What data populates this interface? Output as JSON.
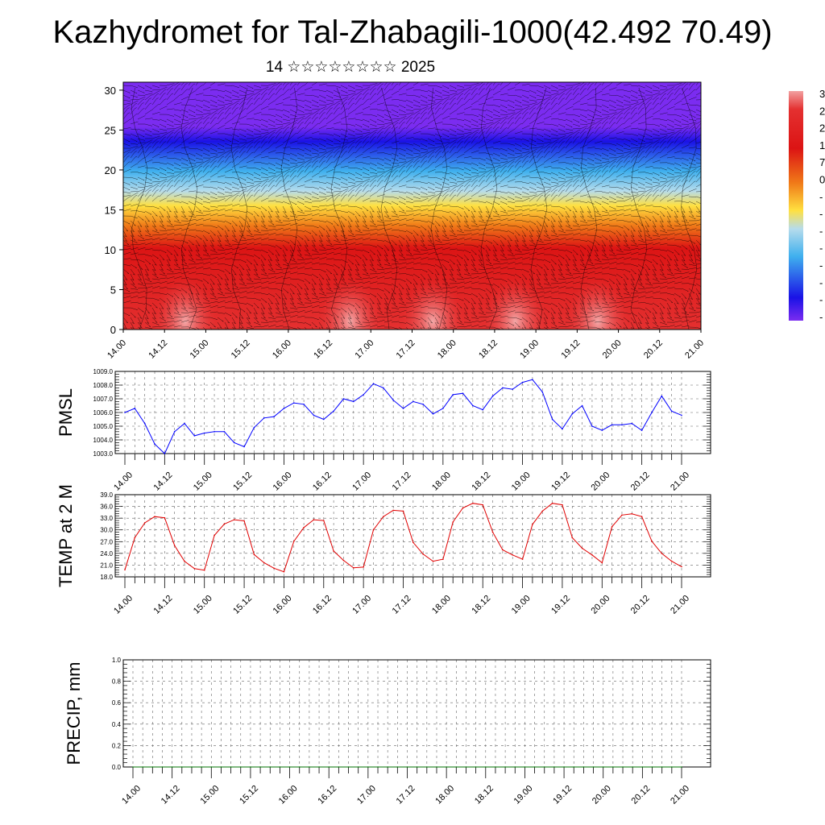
{
  "page": {
    "title": "Kazhydromet for Tal-Zhabagili-1000(42.492 70.49)",
    "subtitle": "14 ☆☆☆☆☆☆☆☆ 2025"
  },
  "colors": {
    "pmsl_line": "#0000ff",
    "temp_line": "#e00000",
    "precip_line": "#007000",
    "violet": "#7b2cf0",
    "blue": "#1a12e6",
    "light_blue": "#b6dcec",
    "yellow": "#ffe040",
    "orange": "#f07a18",
    "red": "#dc1414"
  },
  "chart_data": [
    {
      "type": "heatmap",
      "name": "vertical-profile",
      "x_ticks": [
        "14.00",
        "14.12",
        "15.00",
        "15.12",
        "16.00",
        "16.12",
        "17.00",
        "17.12",
        "18.00",
        "18.12",
        "19.00",
        "19.12",
        "20.00",
        "20.12",
        "21.00"
      ],
      "ylim": [
        0,
        31
      ],
      "y_ticks": [
        0,
        5,
        10,
        15,
        20,
        25,
        30
      ],
      "level_color_bands": [
        {
          "from": 0,
          "to": 12,
          "color": "red"
        },
        {
          "from": 12,
          "to": 14.5,
          "color": "orange"
        },
        {
          "from": 14.5,
          "to": 17,
          "color": "yellow"
        },
        {
          "from": 17,
          "to": 21,
          "color": "light blue"
        },
        {
          "from": 21,
          "to": 25.5,
          "color": "blue"
        },
        {
          "from": 25.5,
          "to": 31,
          "color": "violet"
        }
      ],
      "colorbar_labels": [
        "3",
        "2",
        "2",
        "1",
        "7",
        "0",
        "-",
        "-",
        "-",
        "-",
        "-",
        "-",
        "-",
        "-"
      ],
      "overlay": "wind barbs and contour lines"
    },
    {
      "type": "line",
      "name": "pmsl",
      "ylabel": "PMSL",
      "ylim": [
        1003.0,
        1009.0
      ],
      "y_ticks": [
        "1003.0",
        "1004.0",
        "1005.0",
        "1006.0",
        "1007.0",
        "1008.0",
        "1009.0"
      ],
      "x_ticks": [
        "14.00",
        "14.12",
        "15.00",
        "15.12",
        "16.00",
        "16.12",
        "17.00",
        "17.12",
        "18.00",
        "18.12",
        "19.00",
        "19.12",
        "20.00",
        "20.12",
        "21.00"
      ],
      "x_step_hours": 3,
      "values": [
        1006.0,
        1006.3,
        1005.2,
        1003.7,
        1003.0,
        1004.6,
        1005.2,
        1004.3,
        1004.5,
        1004.6,
        1004.6,
        1003.8,
        1003.5,
        1004.9,
        1005.6,
        1005.7,
        1006.3,
        1006.7,
        1006.6,
        1005.8,
        1005.5,
        1006.1,
        1007.0,
        1006.8,
        1007.3,
        1008.1,
        1007.8,
        1006.9,
        1006.3,
        1006.8,
        1006.6,
        1005.9,
        1006.3,
        1007.3,
        1007.4,
        1006.5,
        1006.2,
        1007.2,
        1007.8,
        1007.7,
        1008.2,
        1008.4,
        1007.5,
        1005.5,
        1004.8,
        1005.9,
        1006.5,
        1005.0,
        1004.7,
        1005.1,
        1005.1,
        1005.2,
        1004.7,
        1006.0,
        1007.2,
        1006.1,
        1005.8
      ]
    },
    {
      "type": "line",
      "name": "temp-2m",
      "ylabel": "TEMP at 2 M",
      "ylim": [
        18.0,
        39.0
      ],
      "y_ticks": [
        "18.0",
        "21.0",
        "24.0",
        "27.0",
        "30.0",
        "33.0",
        "36.0",
        "39.0"
      ],
      "x_ticks": [
        "14.00",
        "14.12",
        "15.00",
        "15.12",
        "16.00",
        "16.12",
        "17.00",
        "17.12",
        "18.00",
        "18.12",
        "19.00",
        "19.12",
        "20.00",
        "20.12",
        "21.00"
      ],
      "x_step_hours": 3,
      "values": [
        19.8,
        28.0,
        31.8,
        33.4,
        33.1,
        26.0,
        22.0,
        20.1,
        19.7,
        28.6,
        31.5,
        32.6,
        32.3,
        23.7,
        21.6,
        20.2,
        19.3,
        27.1,
        30.6,
        32.6,
        32.4,
        24.6,
        22.2,
        20.3,
        20.5,
        30.0,
        33.4,
        35.0,
        34.8,
        26.8,
        23.8,
        22.0,
        22.5,
        32.0,
        35.6,
        36.8,
        36.4,
        29.4,
        24.9,
        23.6,
        22.5,
        31.4,
        34.8,
        36.8,
        36.4,
        28.0,
        25.3,
        23.6,
        21.6,
        30.8,
        33.8,
        34.1,
        33.4,
        27.1,
        24.0,
        22.0,
        20.6
      ]
    },
    {
      "type": "line",
      "name": "precip",
      "ylabel": "PRECIP, mm",
      "ylim": [
        0.0,
        1.0
      ],
      "y_ticks": [
        "0.0",
        "0.2",
        "0.4",
        "0.6",
        "0.8",
        "1.0"
      ],
      "x_ticks": [
        "14.00",
        "14.12",
        "15.00",
        "15.12",
        "16.00",
        "16.12",
        "17.00",
        "17.12",
        "18.00",
        "18.12",
        "19.00",
        "19.12",
        "20.00",
        "20.12",
        "21.00"
      ],
      "x_step_hours": 3,
      "values": [
        0,
        0,
        0,
        0,
        0,
        0,
        0,
        0,
        0,
        0,
        0,
        0,
        0,
        0,
        0,
        0,
        0,
        0,
        0,
        0,
        0,
        0,
        0,
        0,
        0,
        0,
        0,
        0,
        0,
        0,
        0,
        0,
        0,
        0,
        0,
        0,
        0,
        0,
        0,
        0,
        0,
        0,
        0,
        0,
        0,
        0,
        0,
        0,
        0,
        0,
        0,
        0,
        0,
        0,
        0,
        0,
        0
      ]
    }
  ]
}
